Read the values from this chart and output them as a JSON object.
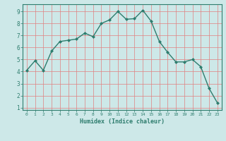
{
  "x": [
    0,
    1,
    2,
    3,
    4,
    5,
    6,
    7,
    8,
    9,
    10,
    11,
    12,
    13,
    14,
    15,
    16,
    17,
    18,
    19,
    20,
    21,
    22,
    23
  ],
  "y": [
    4.1,
    4.9,
    4.1,
    5.7,
    6.5,
    6.6,
    6.7,
    7.2,
    6.9,
    8.0,
    8.3,
    9.0,
    8.35,
    8.4,
    9.1,
    8.2,
    6.5,
    5.6,
    4.8,
    4.8,
    5.0,
    4.4,
    2.6,
    1.4
  ],
  "xlabel": "Humidex (Indice chaleur)",
  "xlim": [
    -0.5,
    23.5
  ],
  "ylim": [
    0.8,
    9.6
  ],
  "yticks": [
    1,
    2,
    3,
    4,
    5,
    6,
    7,
    8,
    9
  ],
  "xticks": [
    0,
    1,
    2,
    3,
    4,
    5,
    6,
    7,
    8,
    9,
    10,
    11,
    12,
    13,
    14,
    15,
    16,
    17,
    18,
    19,
    20,
    21,
    22,
    23
  ],
  "line_color": "#2e7d6e",
  "marker_color": "#2e7d6e",
  "bg_color": "#cde8e8",
  "grid_color": "#f0f0f0",
  "axis_color": "#2e7d6e",
  "tick_color": "#2e7d6e",
  "label_color": "#2e7d6e",
  "font_family": "monospace"
}
